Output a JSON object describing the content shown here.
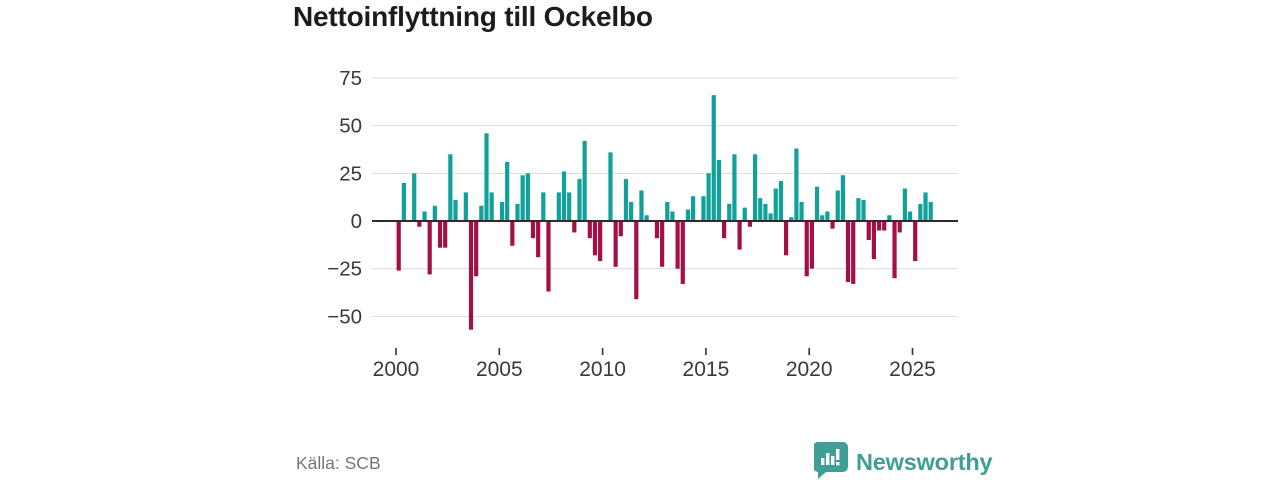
{
  "page": {
    "title": "Nettoinflyttning till Ockelbo",
    "source": "Källa: SCB"
  },
  "branding": {
    "logo_text": "Newsworthy",
    "logo_icon": "speech-bubble-bar-chart-icon",
    "logo_color": "#3f9f96"
  },
  "chart_data": {
    "type": "bar",
    "title": "Nettoinflyttning till Ockelbo",
    "ylabel": "",
    "xlabel": "",
    "frequency": "quarterly",
    "start_period": "2000-Q1",
    "end_period": "2025-Q4",
    "ylim": [
      -62,
      80
    ],
    "grid": true,
    "y_ticks": [
      75,
      50,
      25,
      0,
      -25,
      -50
    ],
    "y_tick_labels": [
      "75",
      "50",
      "25",
      "0",
      "−25",
      "−50"
    ],
    "x_tick_years": [
      2000,
      2005,
      2010,
      2015,
      2020,
      2025
    ],
    "x_tick_labels": [
      "2000",
      "2005",
      "2010",
      "2015",
      "2020",
      "2025"
    ],
    "positive_color": "#11a09a",
    "negative_color": "#a21047",
    "axis_line_color": "#2b2b2b",
    "gridline_color": "#dcdcdc",
    "tick_label_color": "#3a3a3a",
    "values": [
      -26,
      20,
      0,
      25,
      -3,
      5,
      -28,
      8,
      -14,
      -14,
      35,
      11,
      0,
      15,
      -57,
      -29,
      8,
      46,
      15,
      0,
      10,
      31,
      -13,
      9,
      24,
      25,
      -9,
      -19,
      15,
      -37,
      0,
      15,
      26,
      15,
      -6,
      22,
      42,
      -9,
      -18,
      -21,
      0,
      36,
      -24,
      -8,
      22,
      10,
      -41,
      16,
      3,
      0,
      -9,
      -24,
      10,
      5,
      -25,
      -33,
      6,
      13,
      0,
      13,
      25,
      66,
      32,
      -9,
      9,
      35,
      -15,
      7,
      -3,
      35,
      12,
      9,
      4,
      17,
      21,
      -18,
      2,
      38,
      10,
      -29,
      -25,
      18,
      3,
      5,
      -4,
      16,
      24,
      -32,
      -33,
      12,
      11,
      -10,
      -20,
      -5,
      -5,
      3,
      -30,
      -6,
      17,
      5,
      -21,
      9,
      15,
      10
    ]
  }
}
